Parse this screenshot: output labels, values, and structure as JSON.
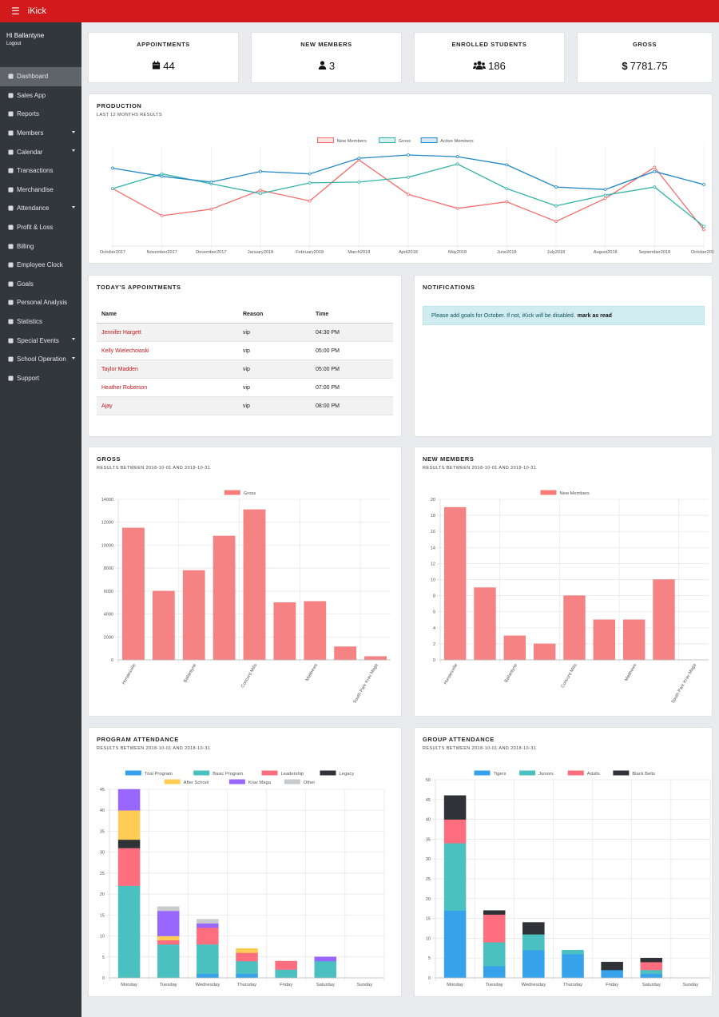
{
  "app": {
    "title": "iKick"
  },
  "user": {
    "greeting": "Hi Ballantyne",
    "logout": "Logout"
  },
  "sidebar": {
    "items": [
      {
        "label": "Dashboard",
        "icon": "dashboard-icon",
        "active": true,
        "caret": false
      },
      {
        "label": "Sales App",
        "icon": "cart-icon",
        "caret": false
      },
      {
        "label": "Reports",
        "icon": "chart-icon",
        "caret": false
      },
      {
        "label": "Members",
        "icon": "id-card-icon",
        "caret": true
      },
      {
        "label": "Calendar",
        "icon": "calendar-icon",
        "caret": true
      },
      {
        "label": "Transactions",
        "icon": "hand-icon",
        "caret": false
      },
      {
        "label": "Merchandise",
        "icon": "tag-icon",
        "caret": false
      },
      {
        "label": "Attendance",
        "icon": "check-icon",
        "caret": true
      },
      {
        "label": "Profit & Loss",
        "icon": "money-icon",
        "caret": false
      },
      {
        "label": "Billing",
        "icon": "bank-icon",
        "caret": false
      },
      {
        "label": "Employee Clock",
        "icon": "clock-icon",
        "caret": false
      },
      {
        "label": "Goals",
        "icon": "trophy-icon",
        "caret": false
      },
      {
        "label": "Personal Analysis",
        "icon": "handshake-icon",
        "caret": false
      },
      {
        "label": "Statistics",
        "icon": "file-icon",
        "caret": false
      },
      {
        "label": "Special Events",
        "icon": "star-icon",
        "caret": true
      },
      {
        "label": "School Operation",
        "icon": "building-icon",
        "caret": true
      },
      {
        "label": "Support",
        "icon": "lifebuoy-icon",
        "caret": false
      }
    ]
  },
  "stats": [
    {
      "label": "APPOINTMENTS",
      "value": "44",
      "icon": "calendar-icon"
    },
    {
      "label": "NEW MEMBERS",
      "value": "3",
      "icon": "user-icon"
    },
    {
      "label": "ENROLLED STUDENTS",
      "value": "186",
      "icon": "users-icon"
    },
    {
      "label": "GROSS",
      "value": "7781.75",
      "icon": "dollar-icon"
    }
  ],
  "production": {
    "title": "PRODUCTION",
    "subtitle": "LAST 12 MONTHS RESULTS"
  },
  "appointments": {
    "title": "TODAY'S APPOINTMENTS",
    "columns": [
      "Name",
      "Reason",
      "Time"
    ],
    "rows": [
      {
        "name": "Jennifer Hargett",
        "reason": "vip",
        "time": "04:30 PM"
      },
      {
        "name": "Kelly Wielechowski",
        "reason": "vip",
        "time": "05:00 PM"
      },
      {
        "name": "Taylor Madden",
        "reason": "vip",
        "time": "05:00 PM"
      },
      {
        "name": "Heather Roberson",
        "reason": "vip",
        "time": "07:00 PM"
      },
      {
        "name": "Ajay",
        "reason": "vip",
        "time": "08:00 PM"
      }
    ]
  },
  "notifications": {
    "title": "NOTIFICATIONS",
    "message": "Please add goals for October. If not, iKick will be disabled.",
    "action": "mark as read"
  },
  "gross_card": {
    "title": "GROSS",
    "subtitle": "RESULTS BETWEEN 2018-10-01 AND 2018-10-31"
  },
  "members_card": {
    "title": "NEW MEMBERS",
    "subtitle": "RESULTS BETWEEN 2018-10-01 AND 2018-10-31"
  },
  "program_card": {
    "title": "PROGRAM ATTENDANCE",
    "subtitle": "RESULTS BETWEEN 2018-10-01 AND 2018-10-31"
  },
  "group_card": {
    "title": "GROUP ATTENDANCE",
    "subtitle": "RESULTS BETWEEN 2018-10-01 AND 2018-10-31"
  },
  "chart_data": [
    {
      "id": "production",
      "type": "line",
      "categories": [
        "October2017",
        "November2017",
        "December2017",
        "January2018",
        "February2018",
        "March2018",
        "April2018",
        "May2018",
        "June2018",
        "July2018",
        "August2018",
        "September2018",
        "October2018"
      ],
      "legend_position": "top",
      "series": [
        {
          "name": "New Members",
          "color": "#f46e6e",
          "values": [
            0.7,
            0.37,
            0.45,
            0.68,
            0.55,
            1.05,
            0.63,
            0.46,
            0.54,
            0.3,
            0.58,
            0.96,
            0.2
          ]
        },
        {
          "name": "Gross",
          "color": "#34b3a8",
          "values": [
            0.7,
            0.88,
            0.76,
            0.64,
            0.77,
            0.78,
            0.84,
            1.0,
            0.7,
            0.49,
            0.62,
            0.72,
            0.24
          ]
        },
        {
          "name": "Active Members",
          "color": "#2288c6",
          "values": [
            0.95,
            0.85,
            0.78,
            0.91,
            0.88,
            1.07,
            1.11,
            1.09,
            0.99,
            0.72,
            0.69,
            0.91,
            0.75
          ]
        }
      ],
      "ylim": [
        0,
        1.12
      ],
      "grid": true
    },
    {
      "id": "gross",
      "type": "bar",
      "categories": [
        "Hurstesville",
        "",
        "Ballantyne",
        "",
        "Concord Mills",
        "",
        "Matthews",
        "",
        "South Park Krav Maga"
      ],
      "series": [
        {
          "name": "Gross",
          "color": "#f67c7c",
          "values": [
            11500,
            6000,
            7800,
            10800,
            13100,
            5000,
            5100,
            1150,
            300
          ]
        }
      ],
      "ylim": [
        0,
        14000
      ],
      "yticks": [
        0,
        2000,
        4000,
        6000,
        8000,
        10000,
        12000,
        14000
      ],
      "legend_position": "top",
      "grid": true
    },
    {
      "id": "new_members",
      "type": "bar",
      "categories": [
        "Hurstesville",
        "",
        "Ballantyne",
        "",
        "Concord Mills",
        "",
        "Matthews",
        "",
        "South Park Krav Maga"
      ],
      "series": [
        {
          "name": "New Members",
          "color": "#f67c7c",
          "values": [
            19,
            9,
            3,
            2,
            8,
            5,
            5,
            10,
            0
          ]
        }
      ],
      "ylim": [
        0,
        20
      ],
      "yticks": [
        0,
        2,
        4,
        6,
        8,
        10,
        12,
        14,
        16,
        18,
        20
      ],
      "legend_position": "top",
      "grid": true
    },
    {
      "id": "program",
      "type": "bar-stacked",
      "categories": [
        "Monday",
        "Tuesday",
        "Wednesday",
        "Thursday",
        "Friday",
        "Saturday",
        "Sunday"
      ],
      "series": [
        {
          "name": "Trial Program",
          "color": "#36a2eb",
          "values": [
            0,
            0,
            1,
            1,
            0,
            0,
            0
          ]
        },
        {
          "name": "Basic Program",
          "color": "#4bc0c0",
          "values": [
            22,
            8,
            7,
            3,
            2,
            4,
            0
          ]
        },
        {
          "name": "Leadership",
          "color": "#ff6e7f",
          "values": [
            9,
            1,
            4,
            2,
            2,
            0,
            0
          ]
        },
        {
          "name": "Legacy",
          "color": "#2f3236",
          "values": [
            2,
            0,
            0,
            0,
            0,
            0,
            0
          ]
        },
        {
          "name": "After School",
          "color": "#ffcd56",
          "values": [
            7,
            1,
            0,
            1,
            0,
            0,
            0
          ]
        },
        {
          "name": "Krav Maga",
          "color": "#9966ff",
          "values": [
            5,
            6,
            1,
            0,
            0,
            1,
            0
          ]
        },
        {
          "name": "Other",
          "color": "#c9cbcf",
          "values": [
            0,
            1,
            1,
            0,
            0,
            0,
            0
          ]
        }
      ],
      "ylim": [
        0,
        45
      ],
      "yticks": [
        0,
        5,
        10,
        15,
        20,
        25,
        30,
        35,
        40,
        45
      ],
      "legend_position": "top",
      "grid": true
    },
    {
      "id": "group",
      "type": "bar-stacked",
      "categories": [
        "Monday",
        "Tuesday",
        "Wednesday",
        "Thursday",
        "Friday",
        "Saturday",
        "Sunday"
      ],
      "series": [
        {
          "name": "Tigers",
          "color": "#36a2eb",
          "values": [
            17,
            3,
            7,
            6,
            2,
            1,
            0
          ]
        },
        {
          "name": "Juniors",
          "color": "#4bc0c0",
          "values": [
            17,
            6,
            4,
            1,
            0,
            1,
            0
          ]
        },
        {
          "name": "Adults",
          "color": "#ff6e7f",
          "values": [
            6,
            7,
            0,
            0,
            0,
            2,
            0
          ]
        },
        {
          "name": "Black Belts",
          "color": "#2f3236",
          "values": [
            6,
            1,
            3,
            0,
            2,
            1,
            0
          ]
        }
      ],
      "ylim": [
        0,
        50
      ],
      "yticks": [
        0,
        5,
        10,
        15,
        20,
        25,
        30,
        35,
        40,
        45,
        50
      ],
      "legend_position": "top",
      "grid": true
    }
  ]
}
